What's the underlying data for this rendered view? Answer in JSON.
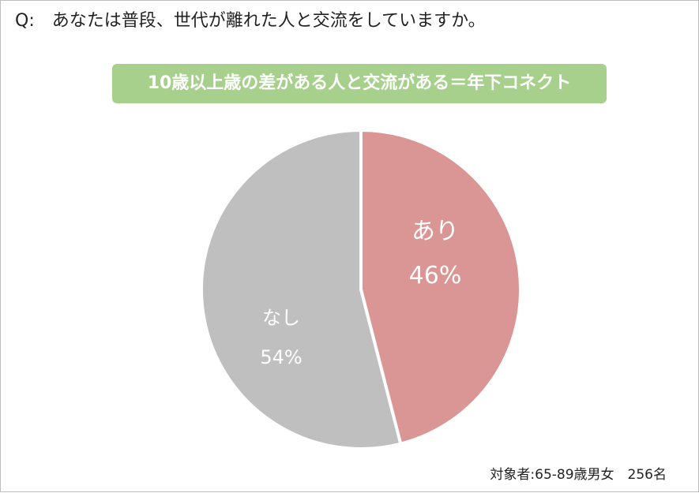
{
  "question": "Q:　あなたは普段、世代が離れた人と交流をしていますか。",
  "banner": "10歳以上歳の差がある人と交流がある＝年下コネクト",
  "footnote": "対象者:65-89歳男女　256名",
  "chart_data": {
    "type": "pie",
    "title": "",
    "slices": [
      {
        "label": "あり",
        "value": 46,
        "value_label": "46%",
        "color": "#d99694"
      },
      {
        "label": "なし",
        "value": 54,
        "value_label": "54%",
        "color": "#bfbfbf"
      }
    ],
    "start": "12 o'clock",
    "direction": "clockwise"
  },
  "colors": {
    "banner": "#a8d08d",
    "border": "#bdbdbd"
  }
}
